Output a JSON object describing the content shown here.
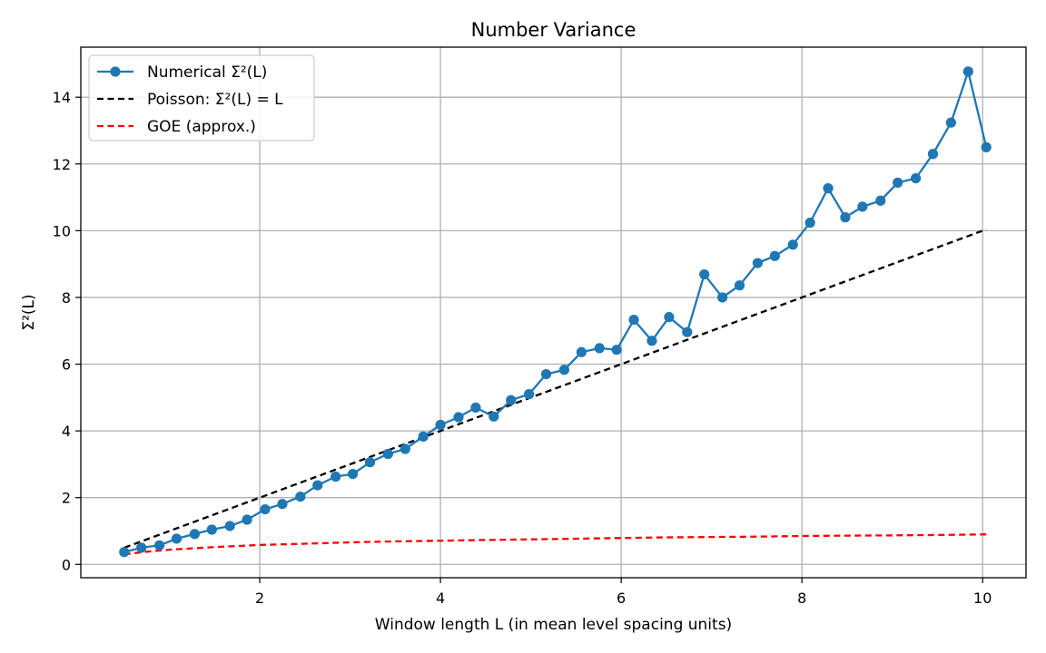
{
  "chart_data": {
    "type": "line",
    "title": "Number Variance",
    "xlabel": "Window length L (in mean level spacing units)",
    "ylabel": "Σ²(L)",
    "xlim": [
      0.02,
      10.48
    ],
    "ylim": [
      -0.4,
      15.5
    ],
    "xticks": [
      2,
      4,
      6,
      8,
      10
    ],
    "yticks": [
      0,
      2,
      4,
      6,
      8,
      10,
      12,
      14
    ],
    "grid": true,
    "legend_position": "upper-left",
    "series": [
      {
        "name": "Numerical Σ²(L)",
        "style": "solid-with-markers",
        "color": "#1f77b4",
        "x": [
          0.5,
          0.69,
          0.89,
          1.08,
          1.28,
          1.47,
          1.67,
          1.86,
          2.06,
          2.25,
          2.45,
          2.64,
          2.84,
          3.03,
          3.22,
          3.42,
          3.61,
          3.81,
          4.0,
          4.2,
          4.39,
          4.59,
          4.78,
          4.98,
          5.17,
          5.37,
          5.56,
          5.76,
          5.95,
          6.14,
          6.34,
          6.53,
          6.73,
          6.92,
          7.12,
          7.31,
          7.51,
          7.7,
          7.9,
          8.09,
          8.29,
          8.48,
          8.67,
          8.87,
          9.06,
          9.26,
          9.45,
          9.65,
          9.84,
          10.04
        ],
        "y": [
          0.37,
          0.5,
          0.57,
          0.77,
          0.91,
          1.04,
          1.15,
          1.34,
          1.65,
          1.81,
          2.03,
          2.37,
          2.63,
          2.71,
          3.06,
          3.31,
          3.46,
          3.83,
          4.18,
          4.41,
          4.7,
          4.43,
          4.92,
          5.1,
          5.7,
          5.83,
          6.36,
          6.48,
          6.43,
          7.33,
          6.7,
          7.41,
          6.96,
          8.69,
          8.0,
          8.36,
          9.03,
          9.24,
          9.58,
          10.24,
          11.27,
          10.4,
          10.72,
          10.9,
          11.44,
          11.57,
          12.3,
          13.24,
          14.77,
          12.5
        ]
      },
      {
        "name": "Poisson: Σ²(L) = L",
        "style": "dashed",
        "color": "#000000",
        "x": [
          0.5,
          10.04
        ],
        "y": [
          0.5,
          10.04
        ]
      },
      {
        "name": "GOE (approx.)",
        "style": "dashed",
        "color": "#ff0000",
        "x": [
          0.5,
          0.75,
          1.0,
          1.5,
          2.0,
          2.5,
          3.0,
          3.5,
          4.0,
          4.5,
          5.0,
          5.5,
          6.0,
          6.5,
          7.0,
          7.5,
          8.0,
          8.5,
          9.0,
          9.5,
          10.04
        ],
        "y": [
          0.3,
          0.38,
          0.44,
          0.52,
          0.58,
          0.62,
          0.66,
          0.69,
          0.71,
          0.73,
          0.75,
          0.77,
          0.79,
          0.81,
          0.82,
          0.83,
          0.85,
          0.86,
          0.87,
          0.88,
          0.9
        ]
      }
    ]
  }
}
